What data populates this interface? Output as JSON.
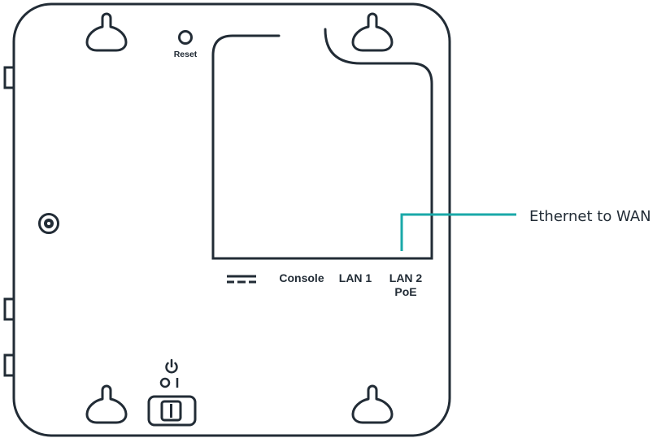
{
  "device": {
    "stroke_color": "#222c36",
    "accent_color": "#1aa8a8",
    "reset_label": "Reset",
    "ports": {
      "dc_power_icon": "dc-power-icon",
      "console": "Console",
      "lan1": "LAN 1",
      "lan2_line1": "LAN 2",
      "lan2_line2": "PoE"
    },
    "power_symbol_icon": "power-icon",
    "switch_symbols": "O I"
  },
  "callout": {
    "text": "Ethernet to WAN"
  }
}
